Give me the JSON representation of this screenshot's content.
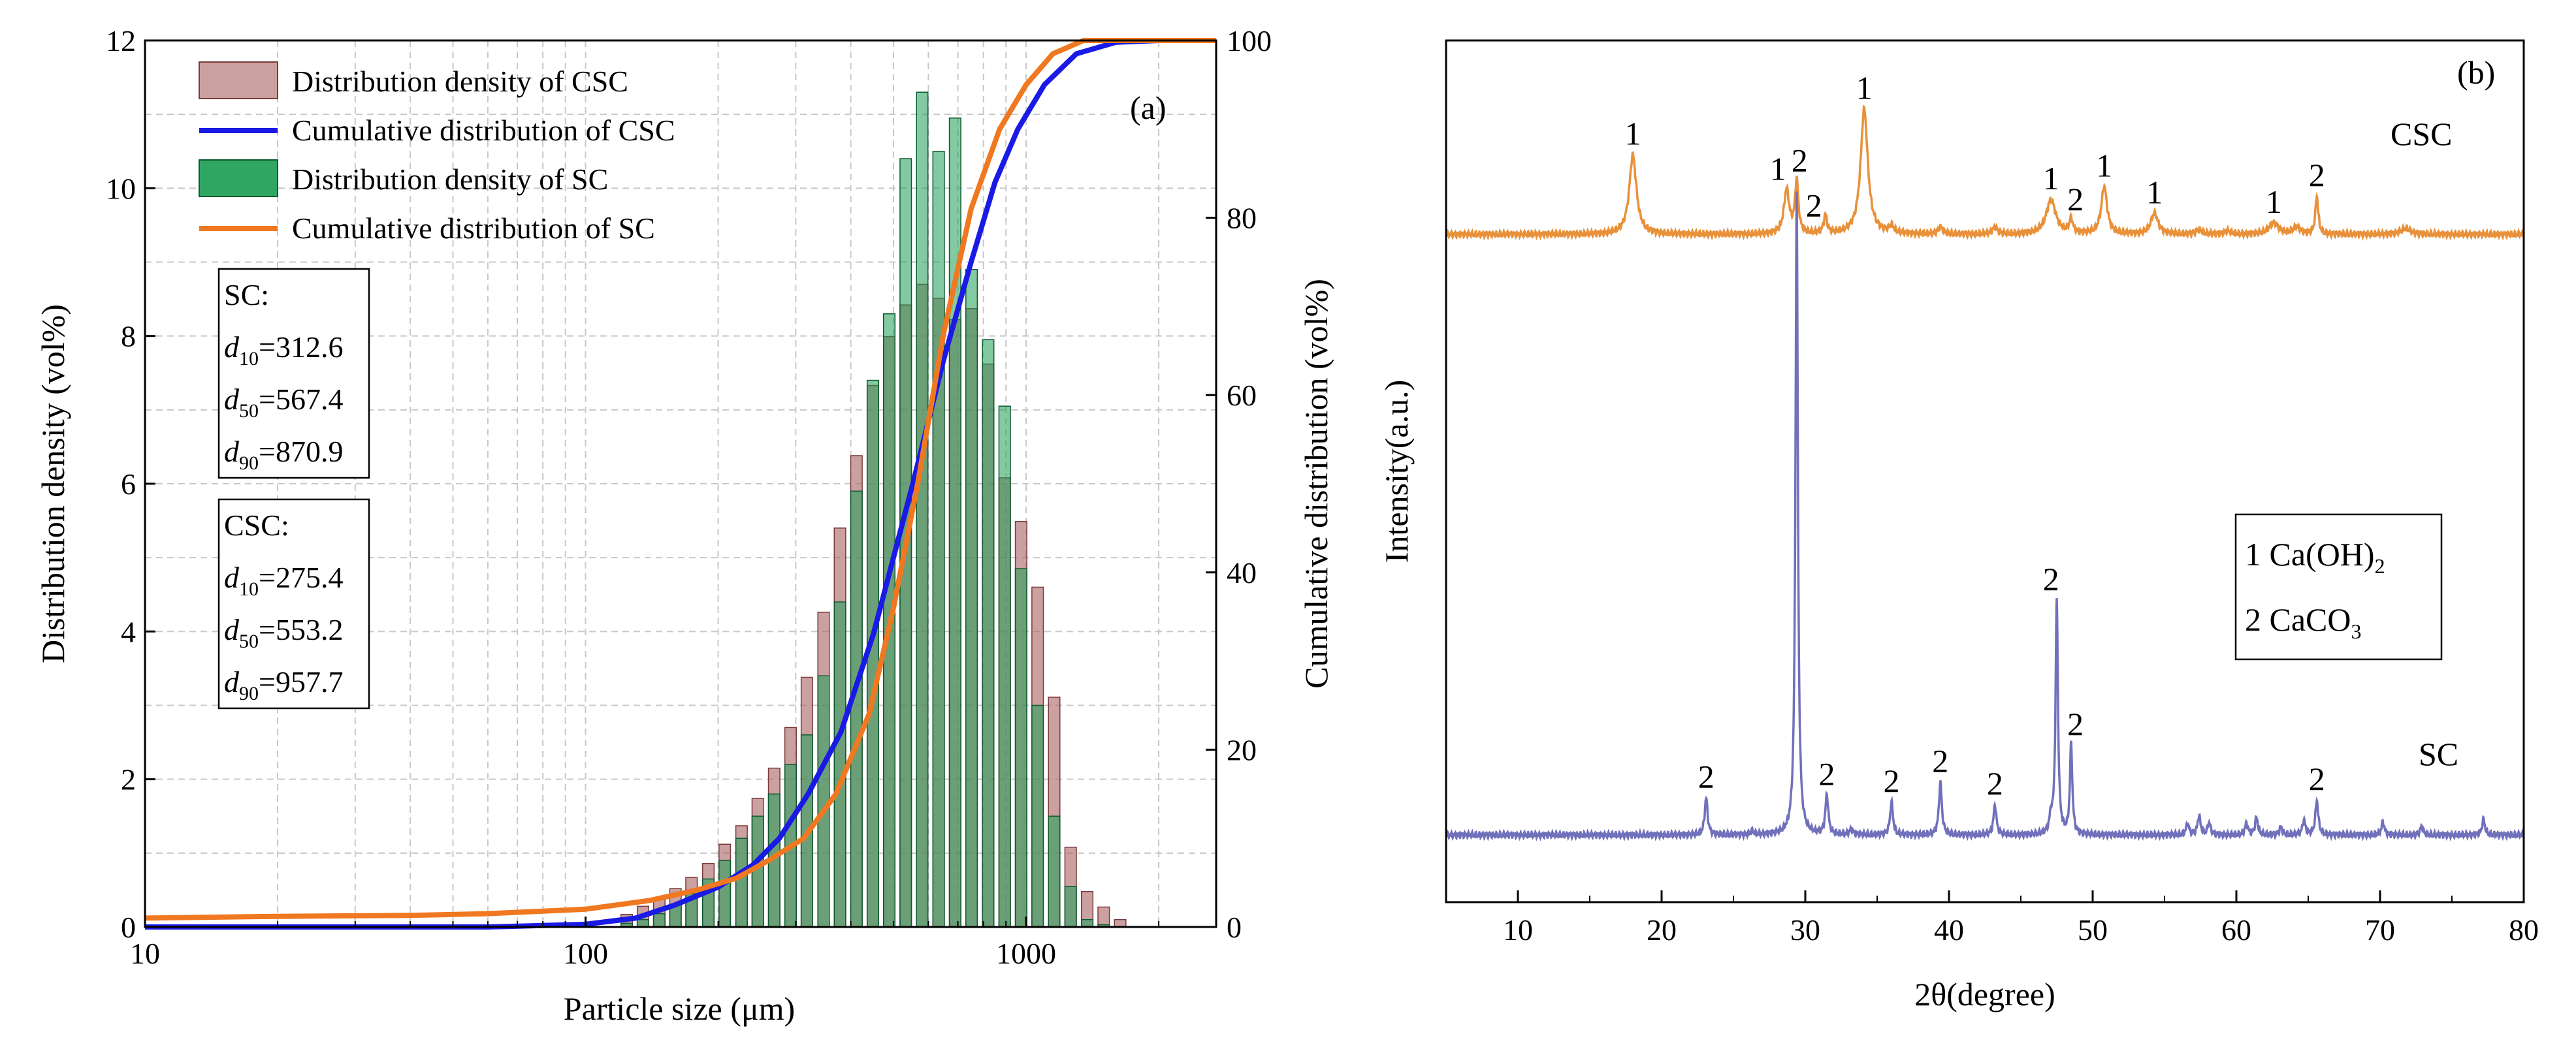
{
  "chart_data": [
    {
      "type": "bar",
      "panel_label": "(a)",
      "xlabel": "Particle size (μm)",
      "ylabel": "Distribution density (vol%)",
      "ylabel_right": "Cumulative distribution (vol%)",
      "xscale": "log",
      "xlim": [
        10,
        2700
      ],
      "ylim": [
        0,
        12
      ],
      "ylim_right": [
        0,
        100
      ],
      "x_ticks": [
        10,
        100,
        1000
      ],
      "x_tick_labels": [
        "10",
        "100",
        "1000"
      ],
      "y_ticks": [
        0,
        2,
        4,
        6,
        8,
        10,
        12
      ],
      "y_tick_labels": [
        "0",
        "2",
        "4",
        "6",
        "8",
        "10",
        "12"
      ],
      "y_right_ticks": [
        0,
        20,
        40,
        60,
        80,
        100
      ],
      "y_right_tick_labels": [
        "0",
        "20",
        "40",
        "60",
        "80",
        "100"
      ],
      "grid": true,
      "legend": [
        "Distribution density of CSC",
        "Cumulative distribution of CSC",
        "Distribution density of SC",
        "Cumulative distribution of SC"
      ],
      "bin_centers": [
        124,
        135,
        147,
        160,
        174,
        190,
        207,
        226,
        246,
        268,
        292,
        318,
        347,
        378,
        412,
        449,
        489,
        533,
        581,
        633,
        690,
        752,
        820,
        894,
        974,
        1062,
        1158,
        1262,
        1376,
        1500,
        1635
      ],
      "series": [
        {
          "name": "Distribution density of CSC",
          "kind": "bar",
          "color": "#a86060",
          "values": [
            0.17,
            0.28,
            0.38,
            0.52,
            0.67,
            0.86,
            1.12,
            1.37,
            1.74,
            2.15,
            2.7,
            3.38,
            4.26,
            5.4,
            6.38,
            7.33,
            7.99,
            8.42,
            8.7,
            8.51,
            8.22,
            8.37,
            7.62,
            6.08,
            5.49,
            4.6,
            3.11,
            1.08,
            0.48,
            0.27,
            0.1
          ]
        },
        {
          "name": "Distribution density of SC",
          "kind": "bar",
          "color": "#1e9e56",
          "values": [
            0.05,
            0.1,
            0.18,
            0.3,
            0.45,
            0.65,
            0.9,
            1.2,
            1.5,
            1.8,
            2.2,
            2.6,
            3.4,
            4.4,
            5.9,
            7.4,
            8.3,
            10.4,
            11.3,
            10.5,
            10.95,
            8.9,
            7.95,
            7.05,
            4.85,
            3.0,
            1.5,
            0.55,
            0.1,
            0.03,
            0.0
          ]
        },
        {
          "name": "Cumulative distribution of CSC",
          "kind": "line",
          "color": "#1a1ae6",
          "x": [
            10,
            60,
            100,
            130,
            160,
            200,
            240,
            275.4,
            320,
            380,
            450,
            553.2,
            650,
            750,
            850,
            957.7,
            1100,
            1300,
            1600,
            2000,
            2700
          ],
          "y": [
            0,
            0,
            0.3,
            1,
            2.5,
            4.5,
            7,
            10,
            15,
            22,
            33,
            50,
            64,
            75,
            84,
            90,
            95,
            98.5,
            99.8,
            100,
            100
          ]
        },
        {
          "name": "Cumulative distribution of SC",
          "kind": "line",
          "color": "#f07820",
          "x": [
            10,
            20,
            40,
            60,
            100,
            140,
            180,
            220,
            260,
            312.6,
            370,
            440,
            500,
            567.4,
            650,
            750,
            870.9,
            1000,
            1150,
            1350,
            1600,
            2700
          ],
          "y": [
            1,
            1.2,
            1.3,
            1.5,
            2,
            3,
            4.2,
            5.5,
            7.5,
            10,
            15,
            24,
            36,
            50,
            67,
            81,
            90,
            95,
            98.5,
            100,
            100,
            100
          ]
        }
      ],
      "annotations": [
        {
          "name": "SC",
          "title": "SC:",
          "d10": "312.6",
          "d50": "567.4",
          "d90": "870.9"
        },
        {
          "name": "CSC",
          "title": "CSC:",
          "d10": "275.4",
          "d50": "553.2",
          "d90": "957.7"
        }
      ]
    },
    {
      "type": "line",
      "panel_label": "(b)",
      "xlabel": "2θ(degree)",
      "ylabel": "Intensity(a.u.)",
      "xlim": [
        5,
        80
      ],
      "x_ticks": [
        10,
        20,
        30,
        40,
        50,
        60,
        70,
        80
      ],
      "x_tick_labels": [
        "10",
        "20",
        "30",
        "40",
        "50",
        "60",
        "70",
        "80"
      ],
      "y_ticks": [],
      "legend_box": {
        "line1_prefix": "1 Ca(OH)",
        "line1_sub": "2",
        "line2_prefix": "2 CaCO",
        "line2_sub": "3"
      },
      "series": [
        {
          "name": "CSC",
          "color": "#e8913a",
          "baseline": 0.775,
          "peaks": [
            {
              "x": 18.0,
              "h": 0.092,
              "w": 0.3,
              "label": "1"
            },
            {
              "x": 28.7,
              "h": 0.051,
              "w": 0.22,
              "label": "1"
            },
            {
              "x": 29.4,
              "h": 0.061,
              "w": 0.14,
              "label": "2"
            },
            {
              "x": 31.4,
              "h": 0.021,
              "w": 0.14
            },
            {
              "x": 34.1,
              "h": 0.145,
              "w": 0.3,
              "label": "1"
            },
            {
              "x": 36.0,
              "h": 0.008,
              "w": 0.2
            },
            {
              "x": 39.4,
              "h": 0.008,
              "w": 0.2
            },
            {
              "x": 43.2,
              "h": 0.008,
              "w": 0.2
            },
            {
              "x": 47.1,
              "h": 0.04,
              "w": 0.4,
              "label": "1"
            },
            {
              "x": 48.5,
              "h": 0.016,
              "w": 0.15,
              "label": "2"
            },
            {
              "x": 50.8,
              "h": 0.055,
              "w": 0.24,
              "label": "1"
            },
            {
              "x": 54.3,
              "h": 0.024,
              "w": 0.3,
              "label": "1"
            },
            {
              "x": 57.4,
              "h": 0.005,
              "w": 0.25
            },
            {
              "x": 59.4,
              "h": 0.004,
              "w": 0.25
            },
            {
              "x": 62.6,
              "h": 0.013,
              "w": 0.4,
              "label": "1"
            },
            {
              "x": 64.2,
              "h": 0.008,
              "w": 0.3
            },
            {
              "x": 65.6,
              "h": 0.044,
              "w": 0.12,
              "label": "2"
            },
            {
              "x": 71.8,
              "h": 0.007,
              "w": 0.4
            }
          ]
        },
        {
          "name": "SC",
          "color": "#7070bb",
          "baseline": 0.078,
          "peaks": [
            {
              "x": 23.1,
              "h": 0.043,
              "w": 0.12,
              "label": "2"
            },
            {
              "x": 26.3,
              "h": 0.004,
              "w": 0.15
            },
            {
              "x": 29.4,
              "h": 0.745,
              "w": 0.1,
              "label": "2"
            },
            {
              "x": 31.5,
              "h": 0.046,
              "w": 0.12,
              "label": "2"
            },
            {
              "x": 33.2,
              "h": 0.006,
              "w": 0.15
            },
            {
              "x": 36.0,
              "h": 0.038,
              "w": 0.12,
              "label": "2"
            },
            {
              "x": 39.4,
              "h": 0.061,
              "w": 0.12,
              "label": "2"
            },
            {
              "x": 43.2,
              "h": 0.035,
              "w": 0.12,
              "label": "2"
            },
            {
              "x": 47.1,
              "h": 0.018,
              "w": 0.12
            },
            {
              "x": 47.5,
              "h": 0.272,
              "w": 0.1,
              "label": "2"
            },
            {
              "x": 48.5,
              "h": 0.104,
              "w": 0.1,
              "label": "2"
            },
            {
              "x": 56.6,
              "h": 0.013,
              "w": 0.12
            },
            {
              "x": 57.4,
              "h": 0.022,
              "w": 0.12
            },
            {
              "x": 58.1,
              "h": 0.014,
              "w": 0.12
            },
            {
              "x": 60.7,
              "h": 0.013,
              "w": 0.12
            },
            {
              "x": 61.4,
              "h": 0.02,
              "w": 0.12
            },
            {
              "x": 63.1,
              "h": 0.009,
              "w": 0.12
            },
            {
              "x": 64.7,
              "h": 0.017,
              "w": 0.12
            },
            {
              "x": 65.6,
              "h": 0.04,
              "w": 0.12,
              "label": "2"
            },
            {
              "x": 70.2,
              "h": 0.015,
              "w": 0.12
            },
            {
              "x": 72.9,
              "h": 0.01,
              "w": 0.12
            },
            {
              "x": 77.2,
              "h": 0.018,
              "w": 0.12
            }
          ]
        }
      ]
    }
  ]
}
